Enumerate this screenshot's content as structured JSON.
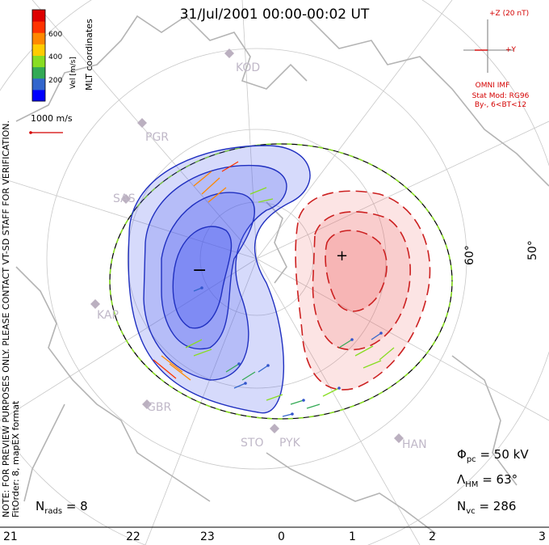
{
  "title": "31/Jul/2001 00:00-00:02 UT",
  "note_line1": "NOTE: FOR PREVIEW PURPOSES ONLY. PLEASE CONTACT VT-SD STAFF FOR VERIFICATION.",
  "note_line2": "FitOrder: 8, mapEX format",
  "legend": {
    "label": "Vel [m/s]",
    "ticks": [
      "600",
      "400",
      "200"
    ],
    "coord_label": "MLT coordinates",
    "colors": [
      "#0000ff",
      "#3366cc",
      "#33aa55",
      "#88dd22",
      "#ffcc00",
      "#ff8800",
      "#ff3300",
      "#dd0000"
    ]
  },
  "scale_label": "1000 m/s",
  "imf": {
    "bz_label": "+Z (20 nT)",
    "by_label": "+Y",
    "omni_label": "OMNI IMF",
    "stat_mod": "Stat Mod: RG96",
    "condition": "By-, 6<BT<12"
  },
  "stations": [
    "KOD",
    "PGR",
    "SAS",
    "KAP",
    "GBR",
    "STO",
    "PYK",
    "HAN"
  ],
  "latitudes": [
    "60°",
    "50°"
  ],
  "mlt_labels": [
    "21",
    "22",
    "23",
    "0",
    "1",
    "2",
    "3"
  ],
  "extrema": {
    "min": "−",
    "max": "+"
  },
  "stats": {
    "phi_label": "Φ",
    "phi_sub": "pc",
    "phi_value": "= 50 kV",
    "lambda_label": "Λ",
    "lambda_sub": "HM",
    "lambda_value": "= 63°",
    "nvc_label": "N",
    "nvc_sub": "vc",
    "nvc_value": "= 286",
    "nrads_label": "N",
    "nrads_sub": "rads",
    "nrads_value": "= 8"
  }
}
